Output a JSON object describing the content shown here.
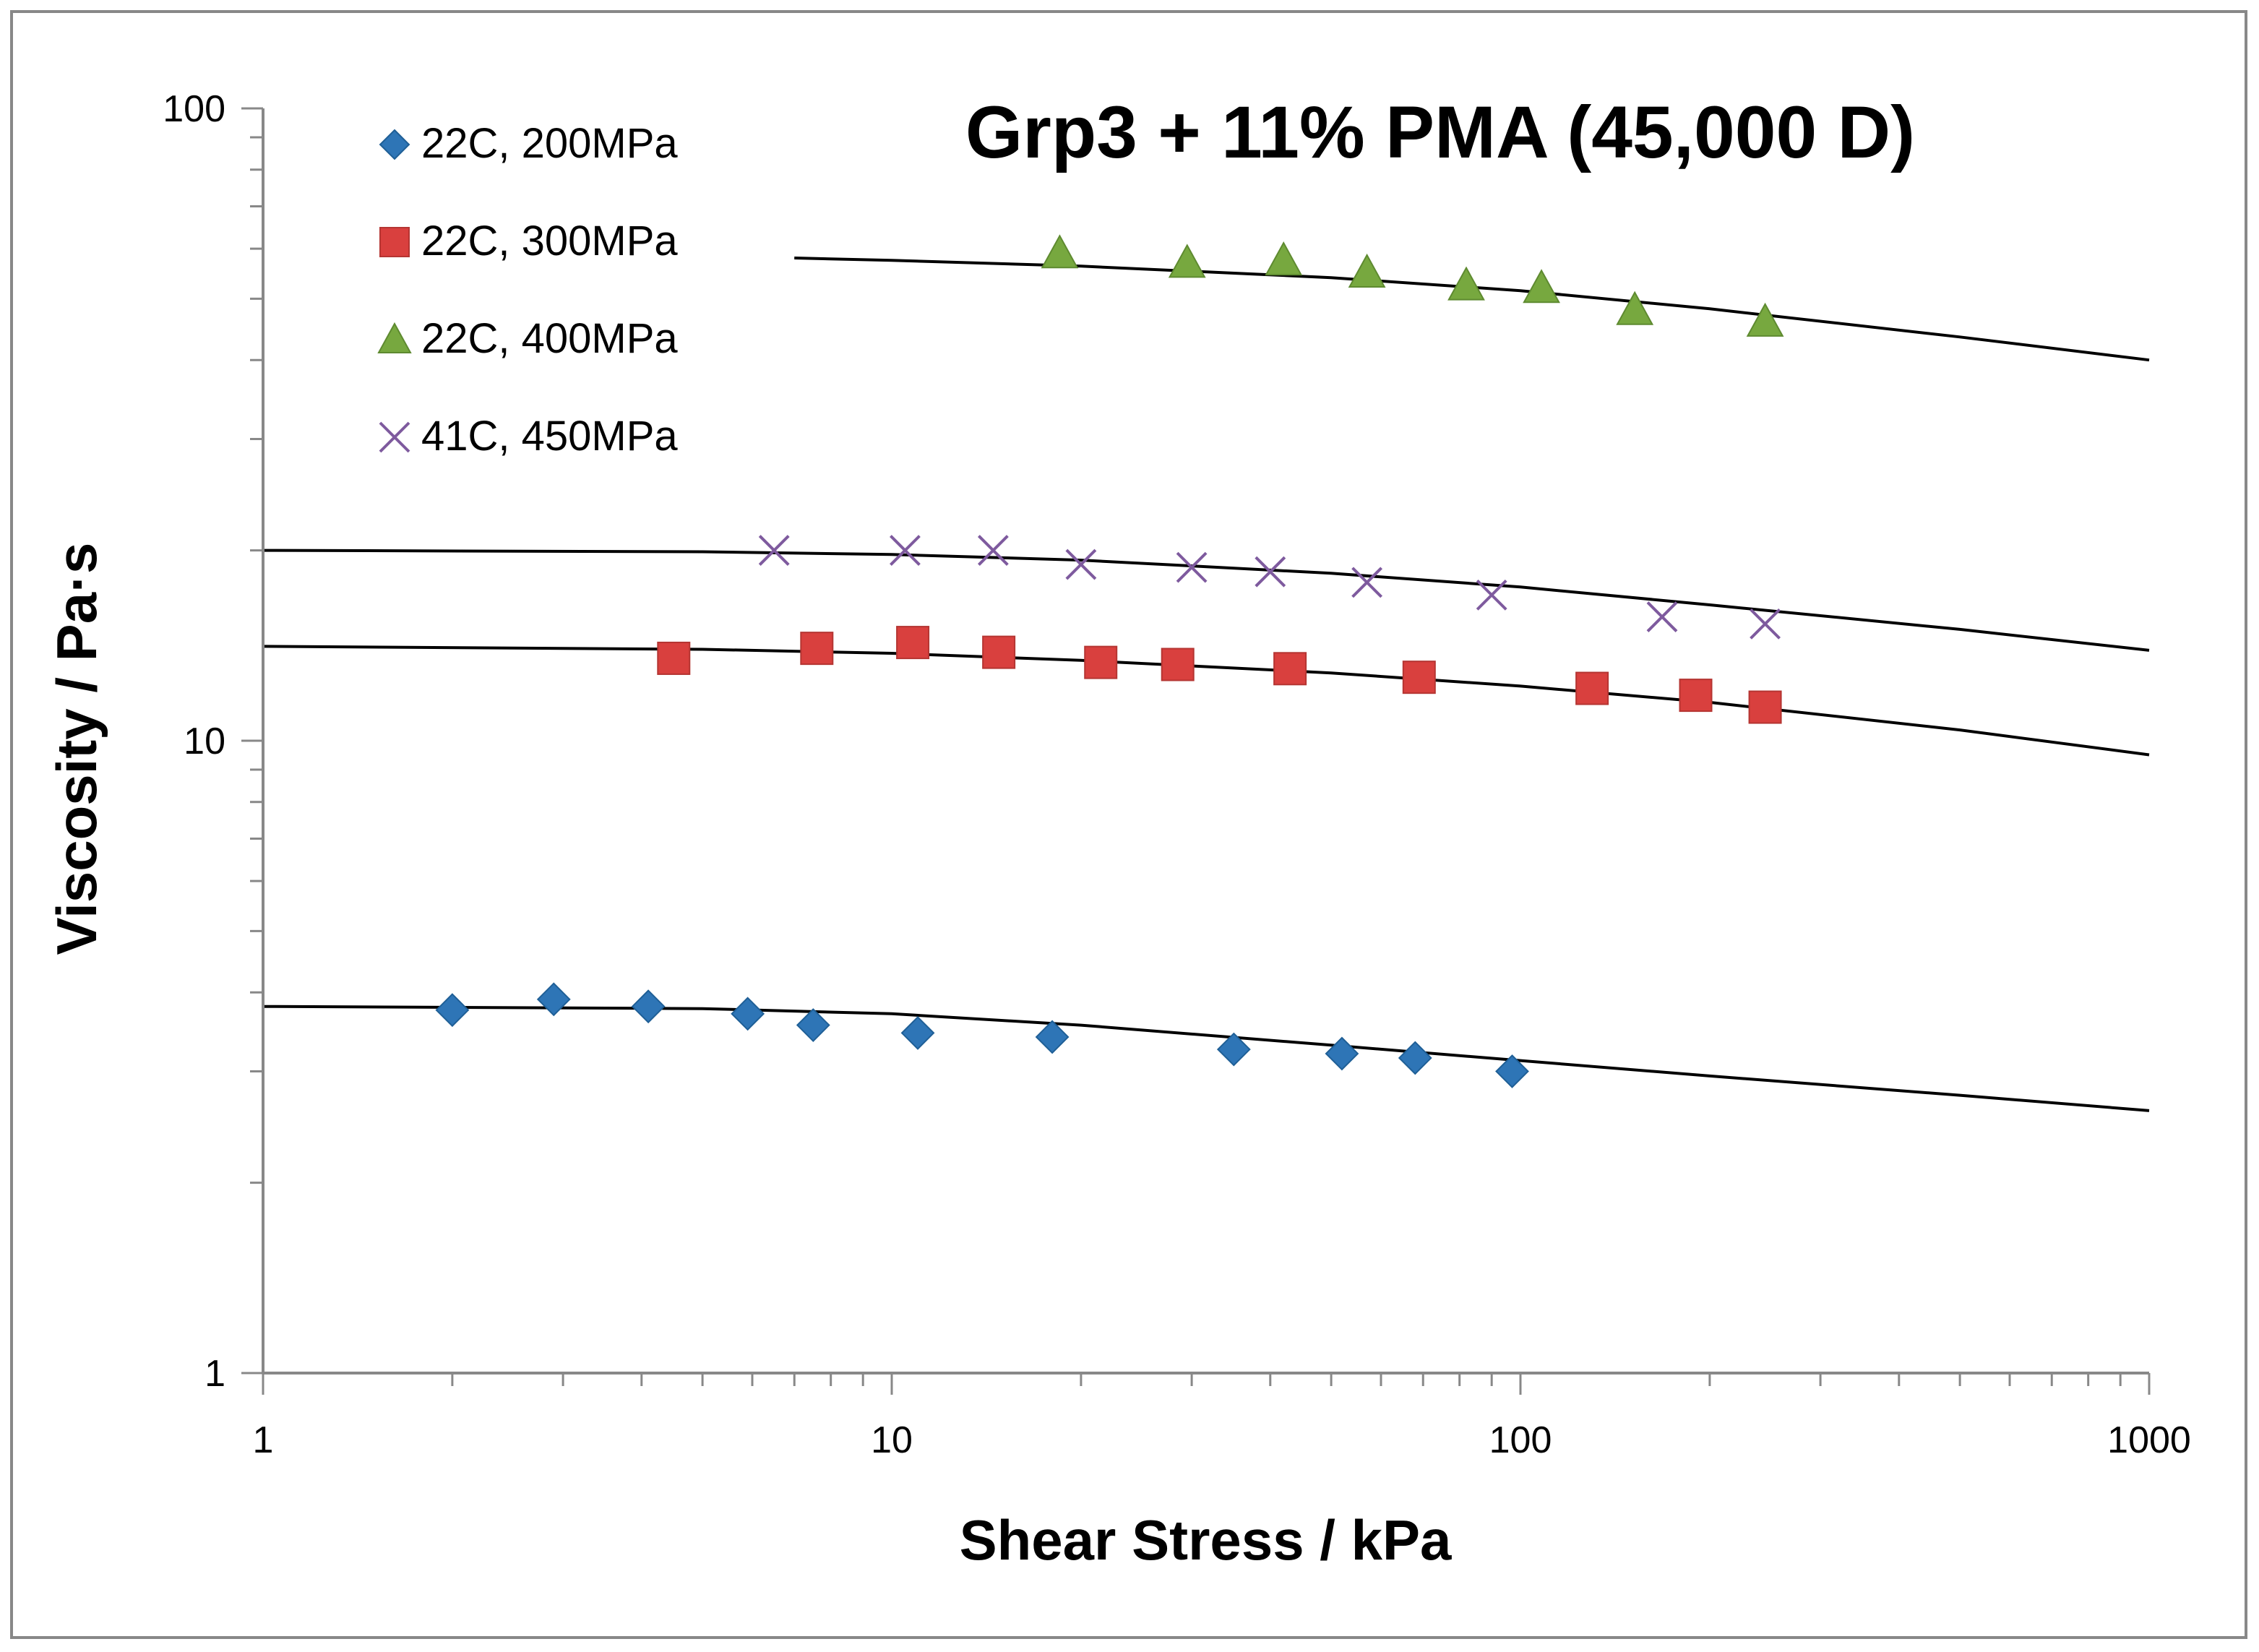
{
  "chart_data": {
    "type": "scatter",
    "title": "Grp3 + 11% PMA (45,000 D)",
    "xlabel": "Shear Stress / kPa",
    "ylabel": "Viscosity / Pa·s",
    "xscale": "log",
    "yscale": "log",
    "xlim": [
      1,
      1000
    ],
    "ylim": [
      1,
      100
    ],
    "x_ticks": [
      "1",
      "10",
      "100",
      "1000"
    ],
    "y_ticks": [
      "1",
      "10",
      "100"
    ],
    "legend_position": "top-left",
    "series": [
      {
        "name": "22C, 200MPa",
        "marker": "diamond",
        "color": "#2E75B6",
        "points": [
          [
            2.0,
            3.75
          ],
          [
            2.9,
            3.9
          ],
          [
            4.1,
            3.8
          ],
          [
            5.9,
            3.7
          ],
          [
            7.5,
            3.55
          ],
          [
            11.0,
            3.45
          ],
          [
            18.0,
            3.4
          ],
          [
            35.0,
            3.25
          ],
          [
            52.0,
            3.2
          ],
          [
            68.0,
            3.15
          ],
          [
            97.0,
            3.0
          ]
        ],
        "fit": [
          [
            1,
            3.8
          ],
          [
            5,
            3.77
          ],
          [
            10,
            3.7
          ],
          [
            20,
            3.55
          ],
          [
            50,
            3.3
          ],
          [
            100,
            3.12
          ],
          [
            200,
            2.95
          ],
          [
            500,
            2.75
          ],
          [
            1000,
            2.6
          ]
        ]
      },
      {
        "name": "22C, 300MPa",
        "marker": "square",
        "color": "#D9403E",
        "points": [
          [
            4.5,
            13.5
          ],
          [
            7.6,
            14.0
          ],
          [
            10.8,
            14.3
          ],
          [
            14.8,
            13.8
          ],
          [
            21.5,
            13.3
          ],
          [
            28.5,
            13.2
          ],
          [
            43.0,
            13.0
          ],
          [
            69.0,
            12.6
          ],
          [
            130.0,
            12.1
          ],
          [
            190.0,
            11.8
          ],
          [
            245.0,
            11.3
          ]
        ],
        "fit": [
          [
            1,
            14.1
          ],
          [
            5,
            13.95
          ],
          [
            10,
            13.75
          ],
          [
            20,
            13.4
          ],
          [
            50,
            12.8
          ],
          [
            100,
            12.2
          ],
          [
            200,
            11.5
          ],
          [
            500,
            10.4
          ],
          [
            1000,
            9.5
          ]
        ]
      },
      {
        "name": "22C, 400MPa",
        "marker": "triangle",
        "color": "#77A83F",
        "points": [
          [
            18.5,
            59.0
          ],
          [
            29.5,
            57.0
          ],
          [
            42.0,
            57.5
          ],
          [
            57.0,
            55.0
          ],
          [
            82.0,
            52.5
          ],
          [
            108.0,
            52.0
          ],
          [
            152.0,
            48.0
          ],
          [
            245.0,
            46.0
          ]
        ],
        "fit": [
          [
            7,
            58.0
          ],
          [
            10,
            57.5
          ],
          [
            20,
            56.3
          ],
          [
            50,
            54.0
          ],
          [
            100,
            51.5
          ],
          [
            200,
            48.2
          ],
          [
            500,
            43.5
          ],
          [
            1000,
            40.0
          ]
        ]
      },
      {
        "name": "41C, 450MPa",
        "marker": "x",
        "color": "#7E5A9E",
        "points": [
          [
            6.5,
            20.0
          ],
          [
            10.5,
            20.0
          ],
          [
            14.5,
            20.0
          ],
          [
            20.0,
            19.0
          ],
          [
            30.0,
            18.8
          ],
          [
            40.0,
            18.5
          ],
          [
            57.0,
            17.8
          ],
          [
            90.0,
            17.0
          ],
          [
            168.0,
            15.7
          ],
          [
            245.0,
            15.3
          ]
        ],
        "fit": [
          [
            1,
            20.0
          ],
          [
            5,
            19.9
          ],
          [
            10,
            19.7
          ],
          [
            20,
            19.3
          ],
          [
            50,
            18.4
          ],
          [
            100,
            17.5
          ],
          [
            200,
            16.4
          ],
          [
            500,
            15.0
          ],
          [
            1000,
            13.9
          ]
        ]
      }
    ]
  }
}
